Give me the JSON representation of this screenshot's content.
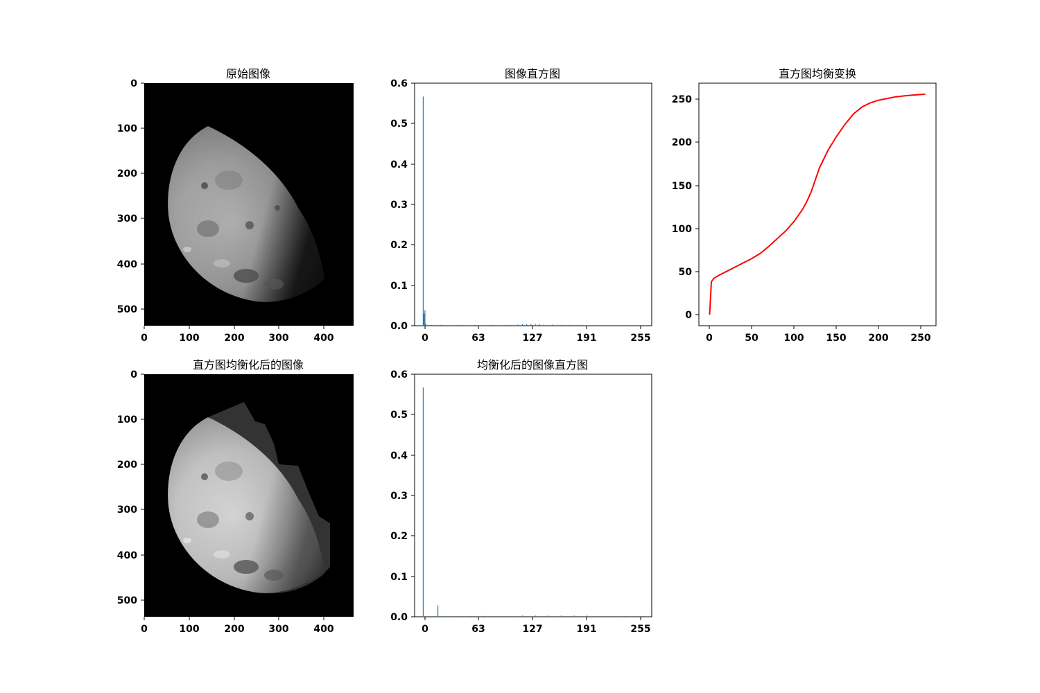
{
  "figure": {
    "background": "#ffffff",
    "subplots": {
      "original_image": {
        "title": "原始图像",
        "kind": "image",
        "image_size": [
          466,
          540
        ],
        "xticks": [
          0,
          100,
          200,
          300,
          400
        ],
        "yticks": [
          0,
          100,
          200,
          300,
          400,
          500
        ],
        "colormap": "gray",
        "content": "moon"
      },
      "original_histogram": {
        "title": "图像直方图",
        "kind": "bar",
        "xticks": [
          0,
          63,
          127,
          191,
          255
        ],
        "yticks": [
          0.0,
          0.1,
          0.2,
          0.3,
          0.4,
          0.5,
          0.6
        ],
        "ylim": [
          0,
          0.6
        ],
        "bar_color": "#1f77b4"
      },
      "transform_curve": {
        "title": "直方图均衡变换",
        "kind": "line",
        "xticks": [
          0,
          50,
          100,
          150,
          200,
          250
        ],
        "yticks": [
          0,
          50,
          100,
          150,
          200,
          250
        ],
        "line_color": "#ff0000"
      },
      "equalized_image": {
        "title": "直方图均衡化后的图像",
        "kind": "image",
        "image_size": [
          466,
          540
        ],
        "xticks": [
          0,
          100,
          200,
          300,
          400
        ],
        "yticks": [
          0,
          100,
          200,
          300,
          400,
          500
        ],
        "colormap": "gray",
        "content": "moon-equalized"
      },
      "equalized_histogram": {
        "title": "均衡化后的图像直方图",
        "kind": "bar",
        "xticks": [
          0,
          63,
          127,
          191,
          255
        ],
        "yticks": [
          0.0,
          0.1,
          0.2,
          0.3,
          0.4,
          0.5,
          0.6
        ],
        "ylim": [
          0,
          0.6
        ],
        "bar_color": "#1f77b4"
      }
    }
  },
  "chart_data": [
    {
      "type": "bar",
      "title": "图像直方图",
      "xlim": [
        -10,
        265
      ],
      "ylim": [
        0,
        0.6
      ],
      "x": [
        0,
        1,
        2,
        3,
        10,
        20,
        40,
        60,
        80,
        100,
        110,
        115,
        120,
        125,
        130,
        135,
        140,
        150,
        160,
        170,
        180,
        190
      ],
      "values": [
        0.567,
        0.03,
        0.038,
        0.005,
        0.002,
        0.002,
        0.002,
        0.002,
        0.002,
        0.002,
        0.003,
        0.004,
        0.004,
        0.004,
        0.004,
        0.004,
        0.003,
        0.003,
        0.002,
        0.002,
        0.002,
        0.001
      ]
    },
    {
      "type": "line",
      "title": "直方图均衡变换",
      "xlim": [
        -12.75,
        267.75
      ],
      "ylim": [
        -12.75,
        267.75
      ],
      "x": [
        0,
        2,
        5,
        10,
        20,
        30,
        40,
        50,
        60,
        70,
        80,
        90,
        100,
        110,
        115,
        120,
        125,
        130,
        140,
        150,
        160,
        170,
        180,
        190,
        200,
        210,
        220,
        230,
        240,
        255
      ],
      "y": [
        0,
        38,
        42,
        45,
        50,
        55,
        60,
        65,
        71,
        79,
        88,
        97,
        108,
        122,
        131,
        142,
        156,
        170,
        190,
        206,
        220,
        232,
        240,
        245,
        248,
        250,
        252,
        253,
        254,
        255
      ]
    },
    {
      "type": "bar",
      "title": "均衡化后的图像直方图",
      "xlim": [
        -10,
        265
      ],
      "ylim": [
        0,
        0.6
      ],
      "x": [
        0,
        17,
        40,
        55,
        70,
        85,
        100,
        115,
        130,
        145,
        160,
        175,
        190,
        205,
        220,
        235,
        250,
        255
      ],
      "values": [
        0.567,
        0.028,
        0.002,
        0.002,
        0.002,
        0.002,
        0.002,
        0.003,
        0.003,
        0.003,
        0.003,
        0.003,
        0.003,
        0.002,
        0.002,
        0.002,
        0.002,
        0.002
      ]
    }
  ]
}
